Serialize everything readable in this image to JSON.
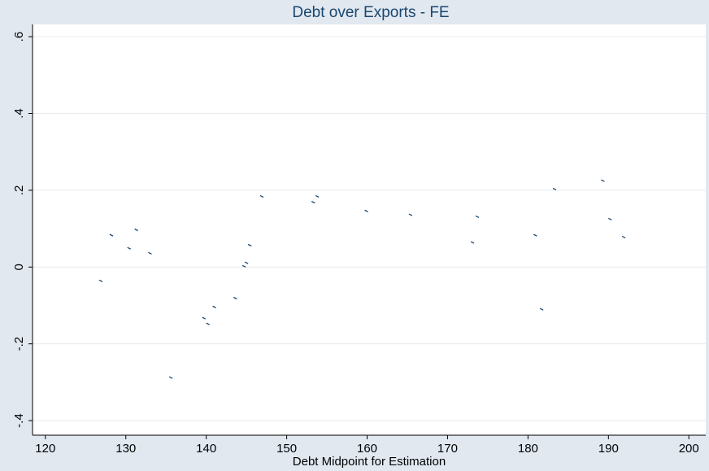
{
  "chart_data": {
    "type": "scatter",
    "title": "Debt over Exports - FE",
    "x_label": "Debt Midpoint for Estimation",
    "x": [
      126.9,
      128.2,
      130.4,
      131.3,
      133.0,
      135.6,
      139.7,
      140.2,
      141.0,
      143.6,
      144.7,
      145.0,
      145.4,
      146.9,
      153.3,
      153.8,
      159.9,
      165.4,
      173.1,
      173.7,
      180.9,
      181.7,
      183.3,
      189.3,
      190.2,
      191.9
    ],
    "values": [
      -0.036,
      0.083,
      0.049,
      0.097,
      0.036,
      -0.288,
      -0.133,
      -0.148,
      -0.104,
      -0.081,
      0.002,
      0.011,
      0.057,
      0.184,
      0.169,
      0.184,
      0.146,
      0.136,
      0.064,
      0.131,
      0.083,
      -0.11,
      0.203,
      0.225,
      0.125,
      0.078
    ],
    "color": "#1a476f",
    "xlim": [
      118.4,
      202.1
    ],
    "xticks": [
      120,
      130,
      140,
      150,
      160,
      170,
      180,
      190,
      200
    ],
    "ylim": [
      -0.438,
      0.632
    ],
    "yticks": [
      {
        "value": -0.4,
        "label": "-.4"
      },
      {
        "value": -0.2,
        "label": "-.2"
      },
      0,
      {
        "value": 0.2,
        "label": ".2"
      },
      {
        "value": 0.4,
        "label": ".4"
      },
      {
        "value": 0.6,
        "label": ".6"
      }
    ],
    "grid": true
  }
}
